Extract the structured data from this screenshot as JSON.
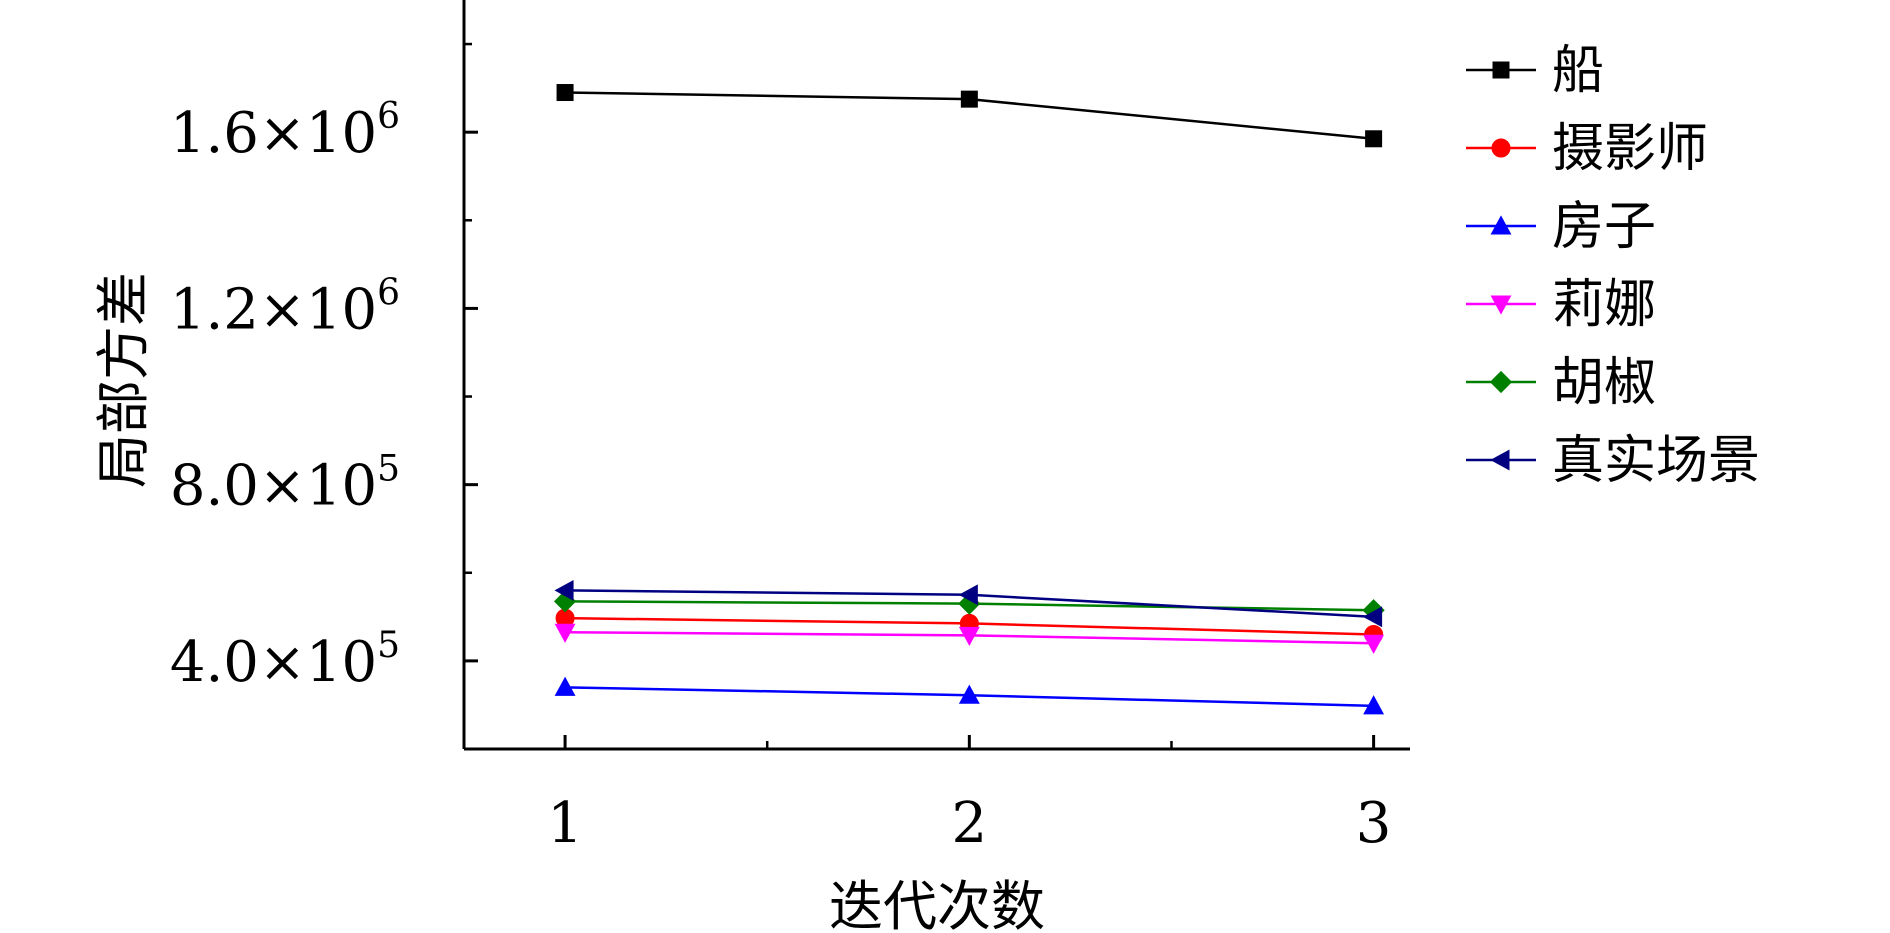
{
  "chart_data": {
    "type": "line",
    "title": "",
    "xlabel": "迭代次数",
    "ylabel": "局部方差",
    "x": [
      1,
      2,
      3
    ],
    "xlim": [
      0.75,
      3.09
    ],
    "ylim": [
      200000,
      1900000
    ],
    "x_ticks": [
      {
        "value": 1,
        "label": "1"
      },
      {
        "value": 2,
        "label": "2"
      },
      {
        "value": 3,
        "label": "3"
      }
    ],
    "y_ticks": [
      {
        "value": 400000,
        "mantissa": "4.0×10",
        "exp": "5"
      },
      {
        "value": 800000,
        "mantissa": "8.0×10",
        "exp": "5"
      },
      {
        "value": 1200000,
        "mantissa": "1.2×10",
        "exp": "6"
      },
      {
        "value": 1600000,
        "mantissa": "1.6×10",
        "exp": "6"
      }
    ],
    "legend_position": "right",
    "grid": false,
    "series": [
      {
        "name": "船",
        "color": "#000000",
        "marker": "square",
        "values": [
          1690000,
          1675000,
          1585000
        ]
      },
      {
        "name": "摄影师",
        "color": "#ff0000",
        "marker": "circle",
        "values": [
          497000,
          485000,
          460000
        ]
      },
      {
        "name": "房子",
        "color": "#0000ff",
        "marker": "triangle-up",
        "values": [
          340000,
          322000,
          298000
        ]
      },
      {
        "name": "莉娜",
        "color": "#ff00ff",
        "marker": "triangle-down",
        "values": [
          465000,
          458000,
          440000
        ]
      },
      {
        "name": "胡椒",
        "color": "#008000",
        "marker": "diamond",
        "values": [
          535000,
          530000,
          515000
        ]
      },
      {
        "name": "真实场景",
        "color": "#000080",
        "marker": "triangle-left",
        "values": [
          560000,
          550000,
          500000
        ]
      }
    ]
  }
}
